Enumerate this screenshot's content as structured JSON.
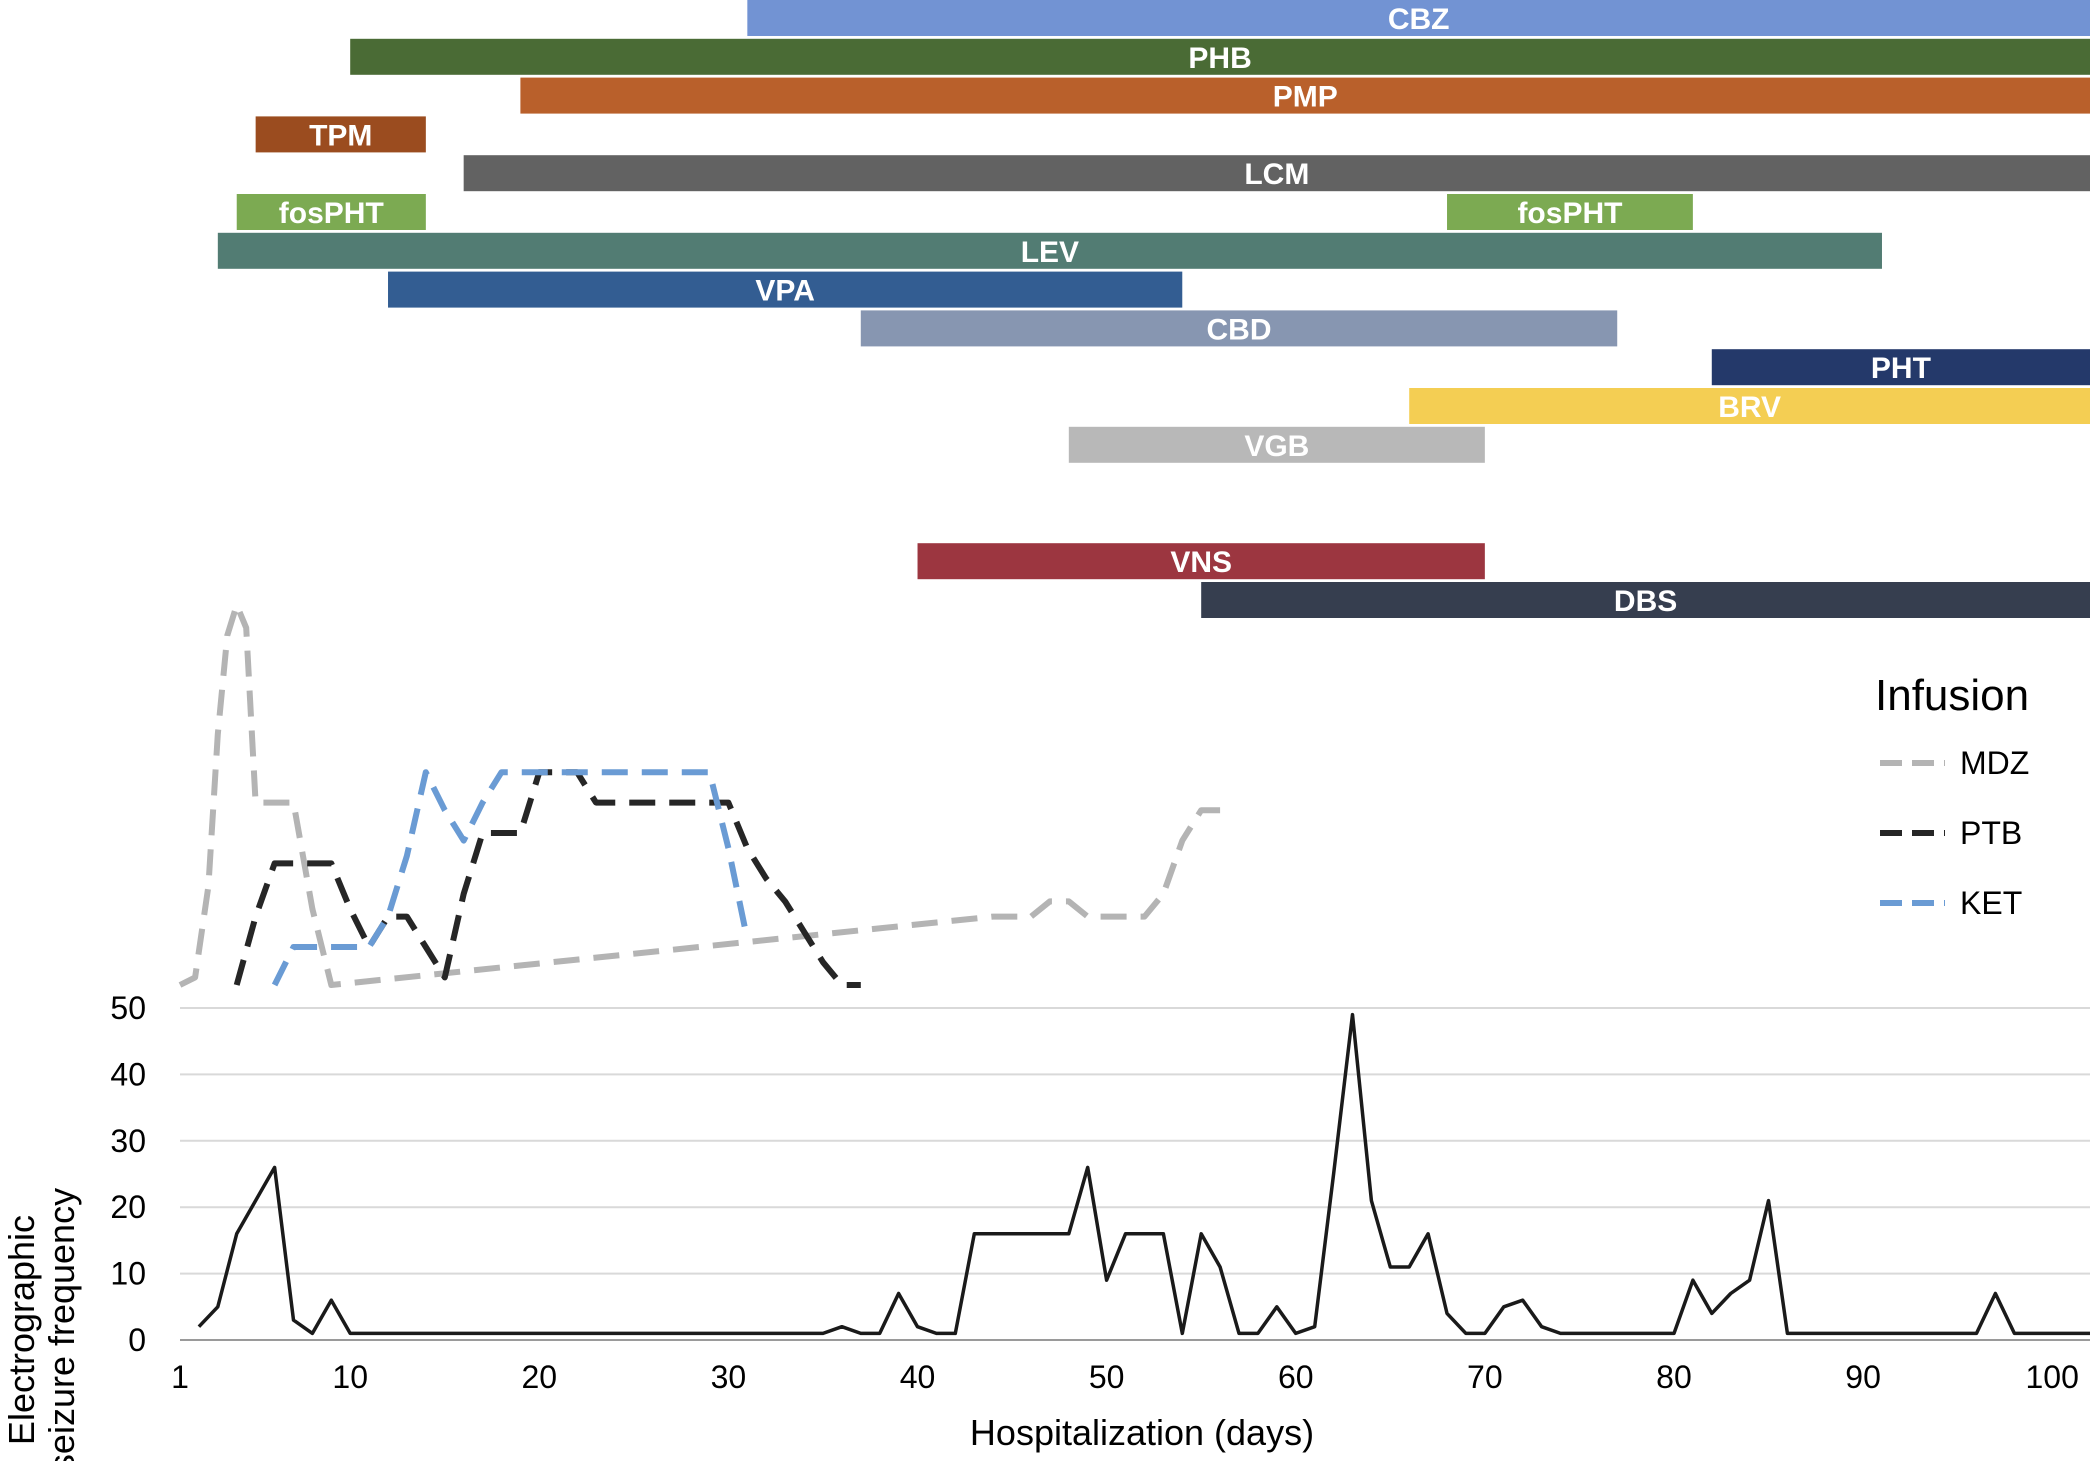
{
  "chart_data": {
    "type": "line",
    "xlabel": "Hospitalization (days)",
    "ylabel": "Electrographic seizure frequency",
    "xlim": [
      1,
      102
    ],
    "ylim": [
      0,
      50
    ],
    "x_ticks": [
      1,
      10,
      20,
      30,
      40,
      50,
      60,
      70,
      80,
      90,
      100
    ],
    "y_ticks": [
      0,
      10,
      20,
      30,
      40,
      50
    ],
    "grid": "horizontal",
    "seizure_series": {
      "color": "#1a1a1a",
      "x": [
        2,
        3,
        4,
        5,
        6,
        7,
        8,
        9,
        10,
        11,
        12,
        13,
        14,
        15,
        16,
        17,
        18,
        19,
        20,
        21,
        22,
        23,
        24,
        25,
        26,
        27,
        28,
        29,
        30,
        31,
        32,
        33,
        34,
        35,
        36,
        37,
        38,
        39,
        40,
        41,
        42,
        43,
        44,
        45,
        46,
        47,
        48,
        49,
        50,
        51,
        52,
        53,
        54,
        55,
        56,
        57,
        58,
        59,
        60,
        61,
        62,
        63,
        64,
        65,
        66,
        67,
        68,
        69,
        70,
        71,
        72,
        73,
        74,
        75,
        76,
        77,
        78,
        79,
        80,
        81,
        82,
        83,
        84,
        85,
        86,
        87,
        88,
        89,
        90,
        91,
        92,
        93,
        94,
        95,
        96,
        97,
        98,
        99,
        100,
        101,
        102
      ],
      "y": [
        2,
        5,
        16,
        21,
        26,
        3,
        1,
        6,
        1,
        1,
        1,
        1,
        1,
        1,
        1,
        1,
        1,
        1,
        1,
        1,
        1,
        1,
        1,
        1,
        1,
        1,
        1,
        1,
        1,
        1,
        1,
        1,
        1,
        1,
        2,
        1,
        1,
        7,
        2,
        1,
        1,
        16,
        16,
        16,
        16,
        16,
        16,
        26,
        9,
        16,
        16,
        16,
        1,
        16,
        11,
        1,
        1,
        5,
        1,
        2,
        25,
        49,
        21,
        11,
        11,
        16,
        4,
        1,
        1,
        5,
        6,
        2,
        1,
        1,
        1,
        1,
        1,
        1,
        1,
        9,
        4,
        7,
        9,
        21,
        1,
        1,
        1,
        1,
        1,
        1,
        1,
        1,
        1,
        1,
        1,
        7,
        1,
        1,
        1,
        1,
        1
      ]
    },
    "legend": {
      "title": "Infusion",
      "position": "right",
      "items": [
        {
          "name": "MDZ",
          "color": "#b4b4b4",
          "dashed": true
        },
        {
          "name": "PTB",
          "color": "#262626",
          "dashed": true
        },
        {
          "name": "KET",
          "color": "#6a9bd4",
          "dashed": true
        }
      ]
    },
    "infusions": [
      {
        "name": "MDZ",
        "color": "#b4b4b4",
        "level_max": 5,
        "x": [
          1,
          1.8,
          2.5,
          3,
          3.5,
          4,
          4.5,
          5,
          6,
          7,
          8,
          9,
          44,
          45,
          46,
          47,
          48,
          49,
          50,
          51,
          52,
          53,
          54,
          55,
          56
        ],
        "y": [
          0,
          0.1,
          1.3,
          3.3,
          4.6,
          5,
          4.7,
          2.4,
          2.4,
          2.4,
          1,
          0,
          0.9,
          0.9,
          0.9,
          1.1,
          1.1,
          0.9,
          0.9,
          0.9,
          0.9,
          1.2,
          1.9,
          2.3,
          2.3
        ]
      },
      {
        "name": "PTB",
        "color": "#262626",
        "level_max": 5,
        "x": [
          4,
          5,
          6,
          7,
          8,
          9,
          10,
          11,
          12,
          13,
          14,
          15,
          16,
          17,
          18,
          19,
          20,
          21,
          22,
          23,
          24,
          25,
          26,
          27,
          28,
          29,
          30,
          31,
          32,
          33,
          34,
          35,
          36,
          37
        ],
        "y": [
          0,
          0.9,
          1.6,
          1.6,
          1.6,
          1.6,
          1,
          0.5,
          0.9,
          0.9,
          0.5,
          0.1,
          1.2,
          2,
          2,
          2,
          2.8,
          2.8,
          2.8,
          2.4,
          2.4,
          2.4,
          2.4,
          2.4,
          2.4,
          2.4,
          2.4,
          1.8,
          1.4,
          1.1,
          0.7,
          0.3,
          0,
          0
        ]
      },
      {
        "name": "KET",
        "color": "#6a9bd4",
        "level_max": 5,
        "x": [
          6,
          7,
          8,
          9,
          10,
          11,
          12,
          13,
          14,
          15,
          16,
          17,
          18,
          19,
          20,
          21,
          22,
          23,
          24,
          25,
          26,
          27,
          28,
          29,
          30,
          31
        ],
        "y": [
          0,
          0.5,
          0.5,
          0.5,
          0.5,
          0.5,
          0.9,
          1.7,
          2.8,
          2.3,
          1.9,
          2.4,
          2.8,
          2.8,
          2.8,
          2.8,
          2.8,
          2.8,
          2.8,
          2.8,
          2.8,
          2.8,
          2.8,
          2.8,
          1.8,
          0.6
        ]
      }
    ],
    "drug_bars": [
      {
        "name": "CBZ",
        "start": 31,
        "end": 102,
        "color": "#7293d3"
      },
      {
        "name": "PHB",
        "start": 10,
        "end": 102,
        "color": "#4a6b35"
      },
      {
        "name": "PMP",
        "start": 19,
        "end": 102,
        "color": "#b9602b"
      },
      {
        "name": "TPM",
        "start": 5,
        "end": 14,
        "color": "#9b4c1f"
      },
      {
        "name": "LCM",
        "start": 16,
        "end": 102,
        "color": "#626262"
      },
      {
        "name": "fosPHT",
        "start": 4,
        "end": 14,
        "color": "#7caa52"
      },
      {
        "name": "fosPHT",
        "start": 68,
        "end": 81,
        "color": "#7caa52"
      },
      {
        "name": "LEV",
        "start": 3,
        "end": 91,
        "color": "#527c73"
      },
      {
        "name": "VPA",
        "start": 12,
        "end": 54,
        "color": "#335d92"
      },
      {
        "name": "CBD",
        "start": 37,
        "end": 77,
        "color": "#8796b1"
      },
      {
        "name": "PHT",
        "start": 82,
        "end": 102,
        "color": "#24396a"
      },
      {
        "name": "BRV",
        "start": 66,
        "end": 102,
        "color": "#f4ce53"
      },
      {
        "name": "VGB",
        "start": 48,
        "end": 70,
        "color": "#b8b8b8"
      },
      {
        "name": "VNS",
        "start": 40,
        "end": 70,
        "color": "#9c3640"
      },
      {
        "name": "DBS",
        "start": 55,
        "end": 102,
        "color": "#363e4f"
      }
    ]
  }
}
